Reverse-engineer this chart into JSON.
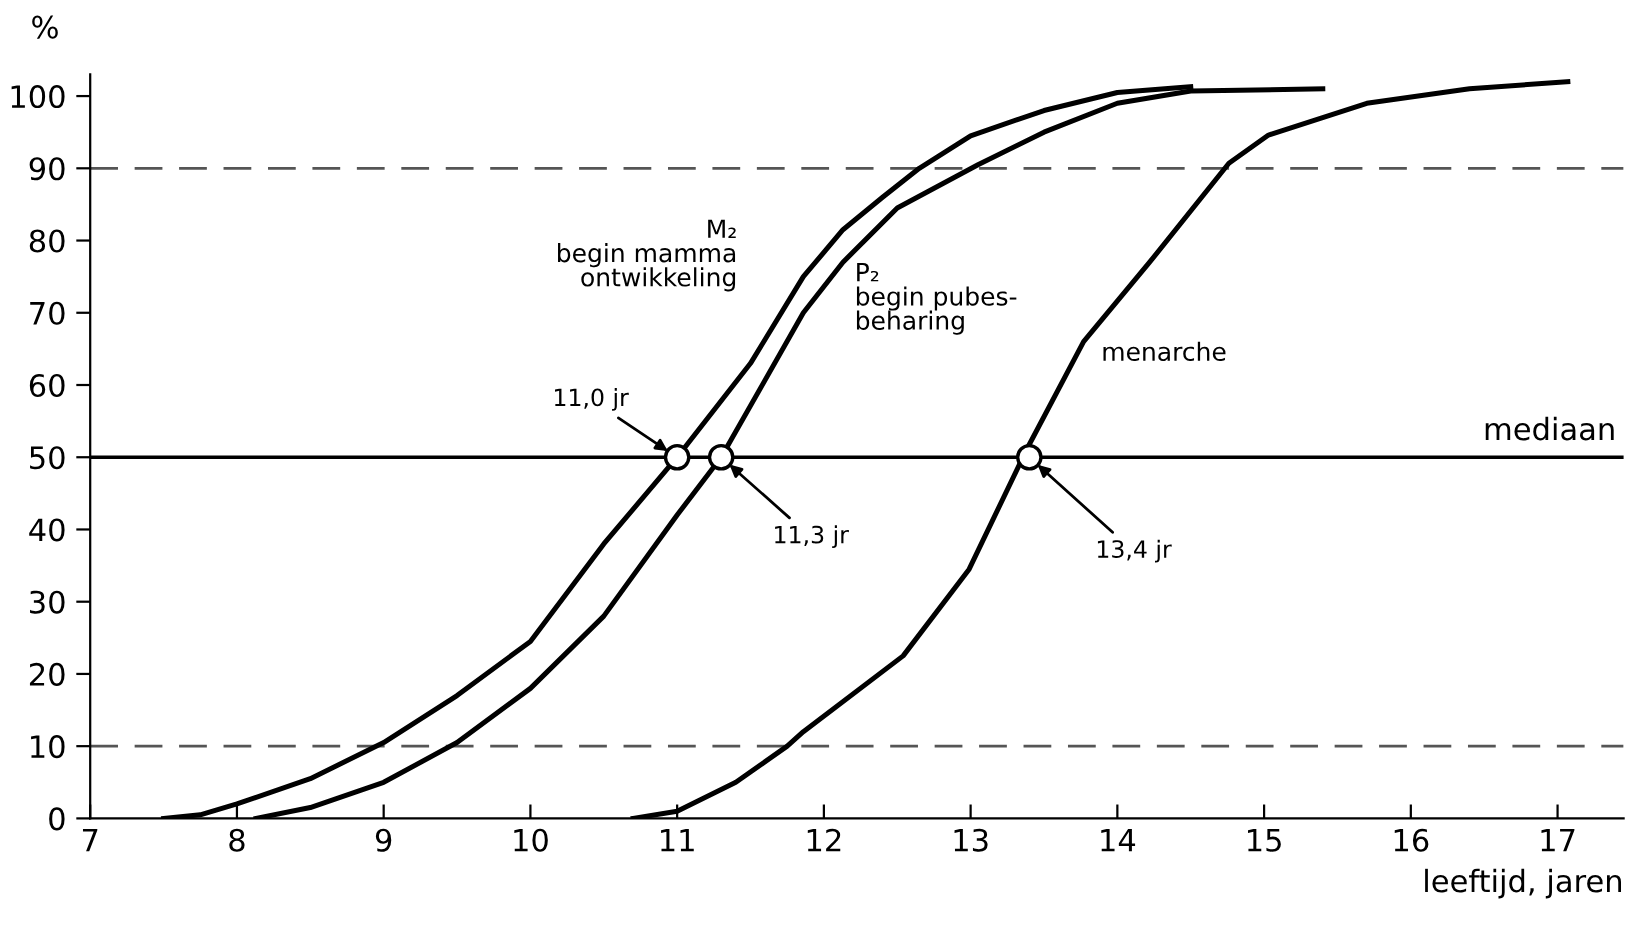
{
  "chart_data": {
    "type": "line",
    "xlabel": "leeftijd, jaren",
    "ylabel": "%",
    "xlim": [
      7,
      17.45
    ],
    "xticks": [
      7,
      8,
      9,
      10,
      11,
      12,
      13,
      14,
      15,
      16,
      17
    ],
    "ylim": [
      0,
      103
    ],
    "yticks": [
      0,
      10,
      20,
      30,
      40,
      50,
      60,
      70,
      80,
      90,
      100
    ],
    "grid": false,
    "legend": false,
    "line_style": "solid",
    "marker": "none",
    "series": [
      {
        "name": "M₂\nbegin mamma\nontwikkeling",
        "color": "#000000",
        "x": [
          7.5,
          7.75,
          8,
          8.5,
          9,
          9.5,
          10,
          10.5,
          11,
          11.5,
          11.86,
          12.13,
          12.4,
          12.65,
          13,
          13.5,
          14,
          14.5
        ],
        "values": [
          0,
          0.5,
          2,
          5.5,
          10.5,
          17,
          24.5,
          38,
          50,
          63,
          75,
          81.5,
          86,
          90,
          94.5,
          98,
          100.5,
          101.3
        ]
      },
      {
        "name": "P₂\nbegin pubes-\nbeharing",
        "color": "#000000",
        "x": [
          8.13,
          8.5,
          9,
          9.5,
          10,
          10.5,
          11,
          11.3,
          11.86,
          12.13,
          12.5,
          13.05,
          13.5,
          14,
          14.5,
          15.4
        ],
        "values": [
          0,
          1.5,
          5,
          10.5,
          18,
          28,
          42,
          50,
          70,
          77,
          84.5,
          90.5,
          95,
          99,
          100.7,
          101
        ]
      },
      {
        "name": "menarche",
        "color": "#000000",
        "x": [
          10.7,
          11,
          11.4,
          11.75,
          11.86,
          12.54,
          12.99,
          13.38,
          13.77,
          14.22,
          14.76,
          15.03,
          15.7,
          16.4,
          17.07
        ],
        "values": [
          0,
          1,
          5,
          10,
          12,
          22.5,
          34.5,
          51,
          66,
          77,
          90.7,
          94.6,
          99,
          101,
          102
        ]
      },
      {
        "type": "scatter",
        "marker": "circle",
        "color": "#000000",
        "x": [
          11,
          11.3,
          13.4
        ],
        "values": [
          50,
          50,
          50
        ]
      }
    ],
    "ref_lines": [
      {
        "axis": "y",
        "value": 50,
        "label": "mediaan",
        "color": "#000000",
        "line_style": "solid"
      },
      {
        "axis": "y",
        "value": 10,
        "label": null,
        "color": "#555555",
        "line_style": "dashed"
      },
      {
        "axis": "y",
        "value": 90,
        "label": null,
        "color": "#555555",
        "line_style": "dashed"
      }
    ],
    "annotations": [
      {
        "text": "11,0 jr",
        "x": 11,
        "y": 50
      },
      {
        "text": "11,3 jr",
        "x": 11.3,
        "y": 50
      },
      {
        "text": "13,4 jr",
        "x": 13.4,
        "y": 50
      }
    ]
  }
}
